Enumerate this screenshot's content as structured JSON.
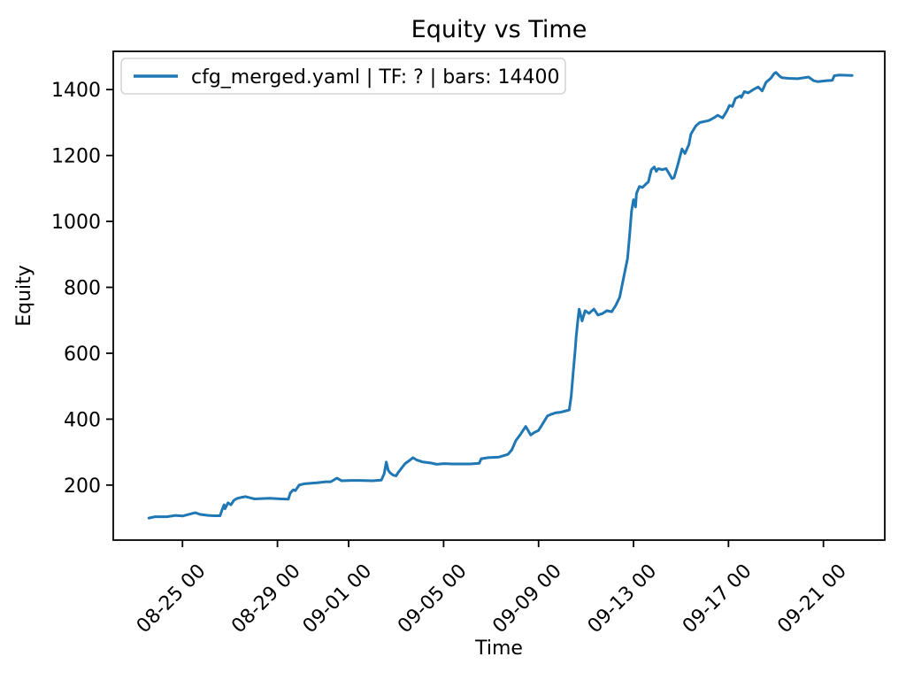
{
  "window": {
    "background": "#ffffff"
  },
  "chart_data": {
    "type": "line",
    "title": "Equity vs Time",
    "xlabel": "Time",
    "ylabel": "Equity",
    "grid": false,
    "legend_position": "upper left",
    "legend": [
      {
        "label": "cfg_merged.yaml | TF: ? | bars: 14400",
        "color": "#1f77b4"
      }
    ],
    "x_ticks": [
      "08-25 00",
      "08-29 00",
      "09-01 00",
      "09-05 00",
      "09-09 00",
      "09-13 00",
      "09-17 00",
      "09-21 00"
    ],
    "y_ticks": [
      200,
      400,
      600,
      800,
      1000,
      1200,
      1400
    ],
    "xlim": [
      "08-22 02",
      "09-23 14"
    ],
    "ylim": [
      33,
      1516
    ],
    "series": [
      {
        "name": "cfg_merged.yaml | TF: ? | bars: 14400",
        "color": "#1f77b4",
        "points": [
          [
            "08-23 14",
            100
          ],
          [
            "08-23 20",
            104
          ],
          [
            "08-24 08",
            104
          ],
          [
            "08-24 17",
            108
          ],
          [
            "08-25 00",
            106
          ],
          [
            "08-25 09",
            113
          ],
          [
            "08-25 13",
            116
          ],
          [
            "08-25 18",
            111
          ],
          [
            "08-26 02",
            108
          ],
          [
            "08-26 08",
            107
          ],
          [
            "08-26 14",
            107
          ],
          [
            "08-26 16",
            125
          ],
          [
            "08-26 18",
            140
          ],
          [
            "08-26 19",
            128
          ],
          [
            "08-26 22",
            146
          ],
          [
            "08-27 01",
            140
          ],
          [
            "08-27 04",
            154
          ],
          [
            "08-27 07",
            159
          ],
          [
            "08-27 12",
            163
          ],
          [
            "08-27 16",
            165
          ],
          [
            "08-27 21",
            161
          ],
          [
            "08-28 01",
            158
          ],
          [
            "08-28 08",
            159
          ],
          [
            "08-28 16",
            160
          ],
          [
            "08-29 04",
            158
          ],
          [
            "08-29 11",
            157
          ],
          [
            "08-29 13",
            176
          ],
          [
            "08-29 16",
            186
          ],
          [
            "08-29 18",
            183
          ],
          [
            "08-29 22",
            200
          ],
          [
            "08-30 03",
            204
          ],
          [
            "08-30 16",
            207
          ],
          [
            "08-31 01",
            210
          ],
          [
            "08-31 06",
            210
          ],
          [
            "08-31 12",
            221
          ],
          [
            "08-31 17",
            213
          ],
          [
            "09-01 02",
            214
          ],
          [
            "09-01 12",
            214
          ],
          [
            "09-02 00",
            213
          ],
          [
            "09-02 09",
            215
          ],
          [
            "09-02 12",
            235
          ],
          [
            "09-02 14",
            270
          ],
          [
            "09-02 16",
            245
          ],
          [
            "09-02 18",
            237
          ],
          [
            "09-02 21",
            230
          ],
          [
            "09-03 00",
            228
          ],
          [
            "09-03 02",
            238
          ],
          [
            "09-03 06",
            253
          ],
          [
            "09-03 09",
            265
          ],
          [
            "09-03 14",
            276
          ],
          [
            "09-03 17",
            283
          ],
          [
            "09-03 21",
            276
          ],
          [
            "09-04 03",
            270
          ],
          [
            "09-04 11",
            267
          ],
          [
            "09-04 17",
            263
          ],
          [
            "09-05 00",
            265
          ],
          [
            "09-05 09",
            264
          ],
          [
            "09-05 18",
            264
          ],
          [
            "09-06 03",
            264
          ],
          [
            "09-06 12",
            266
          ],
          [
            "09-06 14",
            280
          ],
          [
            "09-06 21",
            283
          ],
          [
            "09-07 08",
            285
          ],
          [
            "09-07 17",
            293
          ],
          [
            "09-07 21",
            307
          ],
          [
            "09-08 01",
            335
          ],
          [
            "09-08 06",
            355
          ],
          [
            "09-08 11",
            378
          ],
          [
            "09-08 16",
            352
          ],
          [
            "09-08 20",
            360
          ],
          [
            "09-09 00",
            366
          ],
          [
            "09-09 05",
            390
          ],
          [
            "09-09 09",
            410
          ],
          [
            "09-09 13",
            415
          ],
          [
            "09-09 17",
            419
          ],
          [
            "09-09 22",
            421
          ],
          [
            "09-10 02",
            424
          ],
          [
            "09-10 07",
            428
          ],
          [
            "09-10 09",
            470
          ],
          [
            "09-10 10",
            505
          ],
          [
            "09-10 11",
            540
          ],
          [
            "09-10 13",
            610
          ],
          [
            "09-10 14",
            650
          ],
          [
            "09-10 16",
            707
          ],
          [
            "09-10 17",
            734
          ],
          [
            "09-10 20",
            698
          ],
          [
            "09-10 23",
            729
          ],
          [
            "09-11 03",
            721
          ],
          [
            "09-11 08",
            734
          ],
          [
            "09-11 12",
            716
          ],
          [
            "09-11 17",
            721
          ],
          [
            "09-11 21",
            729
          ],
          [
            "09-12 02",
            726
          ],
          [
            "09-12 06",
            745
          ],
          [
            "09-12 10",
            770
          ],
          [
            "09-12 14",
            830
          ],
          [
            "09-12 18",
            888
          ],
          [
            "09-12 20",
            958
          ],
          [
            "09-12 22",
            1031
          ],
          [
            "09-13 00",
            1066
          ],
          [
            "09-13 02",
            1044
          ],
          [
            "09-13 03",
            1085
          ],
          [
            "09-13 06",
            1106
          ],
          [
            "09-13 09",
            1103
          ],
          [
            "09-13 12",
            1112
          ],
          [
            "09-13 15",
            1120
          ],
          [
            "09-13 18",
            1157
          ],
          [
            "09-13 21",
            1165
          ],
          [
            "09-13 23",
            1152
          ],
          [
            "09-14 01",
            1160
          ],
          [
            "09-14 05",
            1157
          ],
          [
            "09-14 09",
            1160
          ],
          [
            "09-14 15",
            1130
          ],
          [
            "09-14 17",
            1133
          ],
          [
            "09-14 21",
            1174
          ],
          [
            "09-15 01",
            1220
          ],
          [
            "09-15 04",
            1206
          ],
          [
            "09-15 08",
            1233
          ],
          [
            "09-15 10",
            1265
          ],
          [
            "09-15 15",
            1290
          ],
          [
            "09-15 19",
            1300
          ],
          [
            "09-16 04",
            1306
          ],
          [
            "09-16 09",
            1314
          ],
          [
            "09-16 13",
            1322
          ],
          [
            "09-16 18",
            1314
          ],
          [
            "09-16 22",
            1333
          ],
          [
            "09-17 01",
            1352
          ],
          [
            "09-17 04",
            1349
          ],
          [
            "09-17 07",
            1373
          ],
          [
            "09-17 12",
            1381
          ],
          [
            "09-17 13",
            1376
          ],
          [
            "09-17 16",
            1394
          ],
          [
            "09-17 20",
            1390
          ],
          [
            "09-18 01",
            1400
          ],
          [
            "09-18 06",
            1408
          ],
          [
            "09-18 10",
            1396
          ],
          [
            "09-18 14",
            1422
          ],
          [
            "09-18 19",
            1435
          ],
          [
            "09-18 22",
            1448
          ],
          [
            "09-19 00",
            1452
          ],
          [
            "09-19 04",
            1440
          ],
          [
            "09-19 06",
            1436
          ],
          [
            "09-19 13",
            1434
          ],
          [
            "09-19 22",
            1433
          ],
          [
            "09-20 09",
            1438
          ],
          [
            "09-20 14",
            1427
          ],
          [
            "09-20 18",
            1424
          ],
          [
            "09-21 03",
            1427
          ],
          [
            "09-21 09",
            1428
          ],
          [
            "09-21 11",
            1442
          ],
          [
            "09-21 16",
            1444
          ],
          [
            "09-22 05",
            1443
          ]
        ]
      }
    ],
    "colors": {
      "line": "#1f77b4",
      "axes": "#000000",
      "legend_border": "#cccccc",
      "background": "#ffffff"
    }
  }
}
